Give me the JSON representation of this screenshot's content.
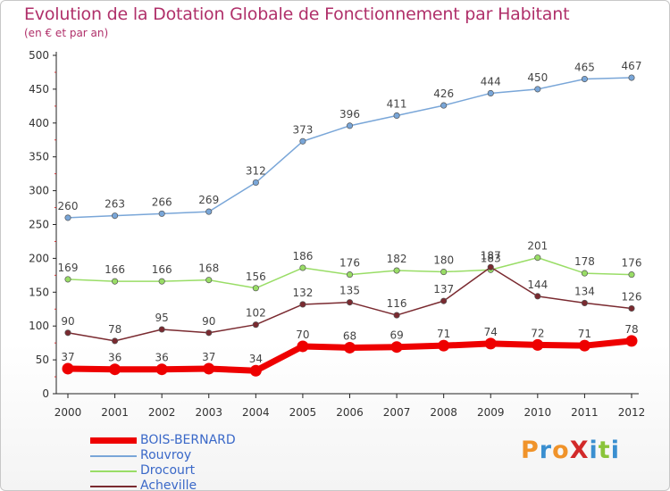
{
  "title": "Evolution de la Dotation Globale de Fonctionnement par Habitant",
  "subtitle": "(en € et par an)",
  "logo": {
    "text": "ProXiti",
    "colors": [
      "#f0932a",
      "#3a8fd0",
      "#f0932a",
      "#d22a2a",
      "#3a8fd0",
      "#8ac43a",
      "#3a8fd0"
    ]
  },
  "chart_data": {
    "type": "line",
    "x": [
      "2000",
      "2001",
      "2002",
      "2003",
      "2004",
      "2005",
      "2006",
      "2007",
      "2008",
      "2009",
      "2010",
      "2011",
      "2012"
    ],
    "ylim": [
      0,
      500
    ],
    "yticks": [
      "0",
      "50",
      "100",
      "150",
      "200",
      "250",
      "300",
      "350",
      "400",
      "450",
      "500"
    ],
    "grid": false,
    "legend_position": "bottom-left",
    "series": [
      {
        "name": "BOIS-BERNARD",
        "color": "#ee0000",
        "label_color": "#3a68c8",
        "emphasis": true,
        "values": [
          37,
          36,
          36,
          37,
          34,
          70,
          68,
          69,
          71,
          74,
          72,
          71,
          78
        ],
        "labels": [
          "37",
          "36",
          "36",
          "37",
          "34",
          "70",
          "68",
          "69",
          "71",
          "74",
          "72",
          "71",
          "78"
        ]
      },
      {
        "name": "Rouvroy",
        "color": "#79a6d8",
        "label_color": "#3a68c8",
        "emphasis": false,
        "values": [
          260,
          263,
          266,
          269,
          312,
          373,
          396,
          411,
          426,
          444,
          450,
          465,
          467
        ],
        "labels": [
          "260",
          "263",
          "266",
          "269",
          "312",
          "373",
          "396",
          "411",
          "426",
          "444",
          "450",
          "465",
          "467"
        ]
      },
      {
        "name": "Drocourt",
        "color": "#99dd66",
        "label_color": "#3a68c8",
        "emphasis": false,
        "values": [
          169,
          166,
          166,
          168,
          156,
          186,
          176,
          182,
          180,
          183,
          201,
          178,
          176
        ],
        "labels": [
          "169",
          "166",
          "166",
          "168",
          "156",
          "186",
          "176",
          "182",
          "180",
          "183",
          "201",
          "178",
          "176"
        ]
      },
      {
        "name": "Acheville",
        "color": "#7a2a30",
        "label_color": "#3a68c8",
        "emphasis": false,
        "values": [
          90,
          78,
          95,
          90,
          102,
          132,
          135,
          116,
          137,
          187,
          144,
          134,
          126
        ],
        "labels": [
          "90",
          "78",
          "95",
          "90",
          "102",
          "132",
          "135",
          "116",
          "137",
          "187",
          "144",
          "134",
          "126"
        ]
      }
    ]
  }
}
